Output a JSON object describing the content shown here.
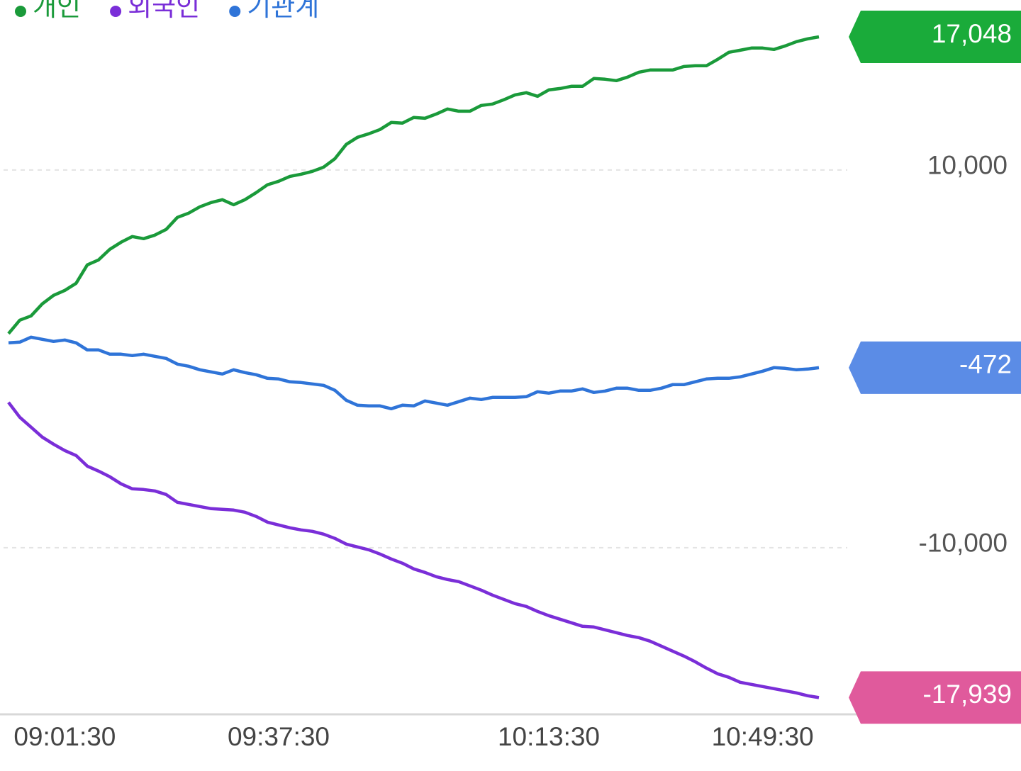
{
  "chart_data": {
    "type": "line",
    "categories": [
      null,
      null,
      null,
      null,
      null,
      "09:01:30",
      null,
      null,
      null,
      null,
      null,
      null,
      null,
      null,
      null,
      null,
      null,
      null,
      null,
      null,
      null,
      null,
      null,
      null,
      "09:37:30",
      null,
      null,
      null,
      null,
      null,
      null,
      null,
      null,
      null,
      null,
      null,
      null,
      null,
      null,
      null,
      null,
      null,
      null,
      null,
      null,
      null,
      null,
      null,
      "10:13:30",
      null,
      null,
      null,
      null,
      null,
      null,
      null,
      null,
      null,
      null,
      null,
      null,
      null,
      null,
      null,
      null,
      null,
      null,
      "10:49:30",
      null,
      null,
      null,
      null,
      null
    ],
    "ylim": [
      -19200,
      19000
    ],
    "yticks": [
      {
        "value": 10000,
        "label": "10,000"
      },
      {
        "value": -10000,
        "label": "-10,000"
      }
    ],
    "grid": true,
    "series": [
      {
        "name": "개인",
        "color": "#1a9a3a",
        "label_color": "#1aab3a",
        "values": [
          1332,
          2045,
          2270,
          2908,
          3358,
          3621,
          3996,
          4972,
          5235,
          5797,
          6173,
          6473,
          6360,
          6548,
          6848,
          7486,
          7711,
          8049,
          8274,
          8424,
          8161,
          8424,
          8799,
          9212,
          9400,
          9662,
          9775,
          9925,
          10150,
          10600,
          11351,
          11726,
          11914,
          12139,
          12514,
          12477,
          12777,
          12739,
          12964,
          13227,
          13114,
          13114,
          13415,
          13490,
          13715,
          13977,
          14090,
          13902,
          14240,
          14315,
          14428,
          14428,
          14841,
          14803,
          14728,
          14916,
          15178,
          15291,
          15291,
          15291,
          15478,
          15516,
          15516,
          15854,
          16229,
          16341,
          16454,
          16454,
          16379,
          16567,
          16792,
          16942,
          17048
        ],
        "value_labels": [
          null,
          null,
          null,
          null,
          null,
          null,
          null,
          null,
          null,
          null,
          null,
          null,
          null,
          null,
          null,
          null,
          null,
          null,
          null,
          null,
          null,
          null,
          null,
          null,
          null,
          null,
          null,
          null,
          null,
          null,
          null,
          null,
          null,
          null,
          null,
          null,
          null,
          null,
          null,
          null,
          null,
          null,
          null,
          null,
          null,
          null,
          null,
          null,
          null,
          null,
          null,
          null,
          null,
          null,
          null,
          null,
          null,
          null,
          null,
          null,
          null,
          null,
          null,
          null,
          null,
          null,
          null,
          null,
          null,
          null,
          null,
          null,
          "17,048"
        ]
      },
      {
        "name": "외국인",
        "color": "#7a2ed8",
        "label_color": "#e05a9c",
        "values": [
          -2307,
          -3096,
          -3621,
          -4146,
          -4522,
          -4859,
          -5122,
          -5685,
          -5947,
          -6247,
          -6622,
          -6885,
          -6923,
          -6998,
          -7185,
          -7598,
          -7711,
          -7823,
          -7936,
          -7973,
          -8011,
          -8123,
          -8348,
          -8648,
          -8799,
          -8949,
          -9061,
          -9136,
          -9286,
          -9511,
          -9811,
          -9962,
          -10112,
          -10337,
          -10600,
          -10825,
          -11125,
          -11312,
          -11537,
          -11687,
          -11800,
          -12025,
          -12250,
          -12513,
          -12738,
          -12963,
          -13113,
          -13376,
          -13601,
          -13788,
          -13976,
          -14164,
          -14201,
          -14351,
          -14501,
          -14651,
          -14764,
          -14952,
          -15214,
          -15477,
          -15740,
          -16040,
          -16377,
          -16677,
          -16865,
          -17128,
          -17240,
          -17353,
          -17465,
          -17578,
          -17690,
          -17840,
          -17939
        ],
        "value_labels": [
          null,
          null,
          null,
          null,
          null,
          null,
          null,
          null,
          null,
          null,
          null,
          null,
          null,
          null,
          null,
          null,
          null,
          null,
          null,
          null,
          null,
          null,
          null,
          null,
          null,
          null,
          null,
          null,
          null,
          null,
          null,
          null,
          null,
          null,
          null,
          null,
          null,
          null,
          null,
          null,
          null,
          null,
          null,
          null,
          null,
          null,
          null,
          null,
          null,
          null,
          null,
          null,
          null,
          null,
          null,
          null,
          null,
          null,
          null,
          null,
          null,
          null,
          null,
          null,
          null,
          null,
          null,
          null,
          null,
          null,
          null,
          null,
          "-17,939"
        ]
      },
      {
        "name": "기관계",
        "color": "#2f74d8",
        "label_color": "#5b8ce6",
        "values": [
          844,
          882,
          1144,
          1032,
          919,
          994,
          844,
          469,
          469,
          244,
          244,
          169,
          244,
          131,
          19,
          -281,
          -394,
          -582,
          -694,
          -807,
          -582,
          -732,
          -844,
          -1032,
          -1069,
          -1219,
          -1257,
          -1332,
          -1407,
          -1670,
          -2195,
          -2458,
          -2495,
          -2495,
          -2645,
          -2458,
          -2495,
          -2232,
          -2345,
          -2458,
          -2270,
          -2082,
          -2157,
          -2045,
          -2045,
          -2045,
          -2007,
          -1745,
          -1820,
          -1707,
          -1707,
          -1595,
          -1782,
          -1707,
          -1557,
          -1557,
          -1670,
          -1670,
          -1557,
          -1369,
          -1369,
          -1219,
          -1069,
          -1032,
          -1032,
          -957,
          -807,
          -657,
          -469,
          -507,
          -582,
          -544,
          -472
        ],
        "value_labels": [
          null,
          null,
          null,
          null,
          null,
          null,
          null,
          null,
          null,
          null,
          null,
          null,
          null,
          null,
          null,
          null,
          null,
          null,
          null,
          null,
          null,
          null,
          null,
          null,
          null,
          null,
          null,
          null,
          null,
          null,
          null,
          null,
          null,
          null,
          null,
          null,
          null,
          null,
          null,
          null,
          null,
          null,
          null,
          null,
          null,
          null,
          null,
          null,
          null,
          null,
          null,
          null,
          null,
          null,
          null,
          null,
          null,
          null,
          null,
          null,
          null,
          null,
          null,
          null,
          null,
          null,
          null,
          null,
          null,
          null,
          null,
          null,
          "-472"
        ]
      }
    ]
  }
}
